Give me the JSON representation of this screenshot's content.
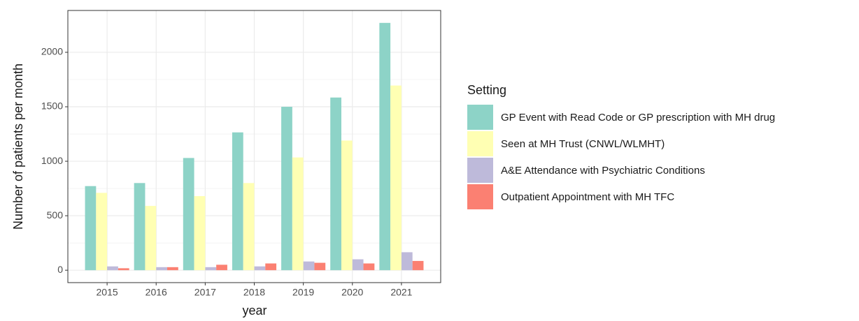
{
  "chart_data": {
    "type": "bar",
    "x_label": "year",
    "y_label": "Number of patients per month",
    "categories": [
      "2015",
      "2016",
      "2017",
      "2018",
      "2019",
      "2020",
      "2021"
    ],
    "series": [
      {
        "name": "GP Event with Read Code or GP prescription with MH drug",
        "color": "#8dd3c7",
        "values": [
          772,
          800,
          1030,
          1265,
          1500,
          1585,
          2270
        ]
      },
      {
        "name": "Seen at MH Trust (CNWL/WLMHT)",
        "color": "#ffffb3",
        "values": [
          710,
          590,
          680,
          800,
          1035,
          1190,
          1695
        ]
      },
      {
        "name": "A&E Attendance with Psychiatric Conditions",
        "color": "#bebada",
        "values": [
          35,
          28,
          28,
          35,
          80,
          100,
          165
        ]
      },
      {
        "name": "Outpatient Appointment with MH TFC",
        "color": "#fb8072",
        "values": [
          18,
          28,
          50,
          62,
          68,
          62,
          85
        ]
      }
    ],
    "ylim": [
      -114,
      2384
    ],
    "yticks": [
      0,
      500,
      1000,
      1500,
      2000
    ],
    "grid": true,
    "legend_title": "Setting",
    "legend_position": "right"
  }
}
